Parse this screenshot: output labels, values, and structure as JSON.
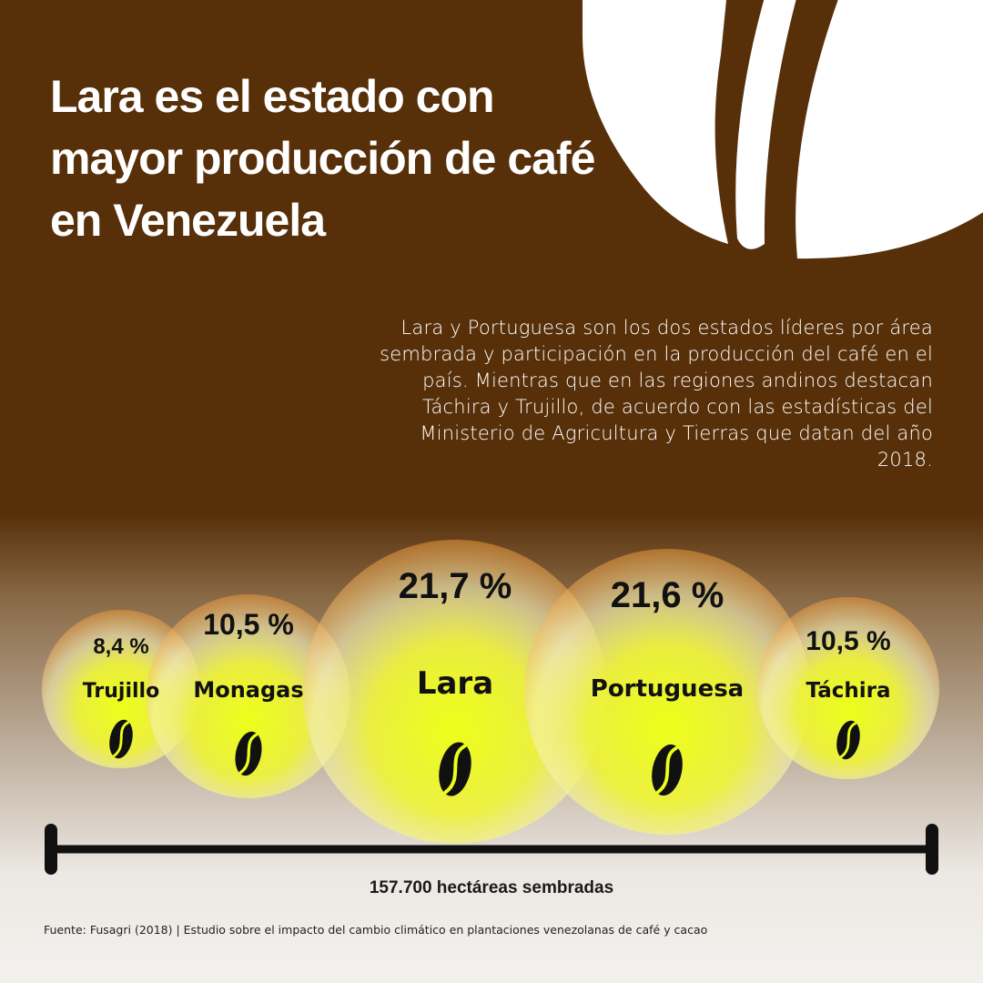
{
  "header": {
    "title": "Lara es el estado con mayor producción de café en Venezuela",
    "intro": "Lara y Portuguesa son los dos estados líderes por área sembrada y participación en la producción del café en el país. Mientras que en las regiones andinos destacan Táchira y Trujillo, de acuerdo con las estadísticas del Ministerio de Agricultura y Tierras que datan del año 2018."
  },
  "chart_data": {
    "type": "bubble",
    "categories": [
      "Trujillo",
      "Monagas",
      "Lara",
      "Portuguesa",
      "Táchira"
    ],
    "values": [
      8.4,
      10.5,
      21.7,
      21.6,
      10.5
    ],
    "value_labels": [
      "8,4 %",
      "10,5 %",
      "21,7 %",
      "21,6 %",
      "10,5 %"
    ],
    "unit": "%",
    "total_label": "157.700 hectáreas sembradas"
  },
  "footer": {
    "source": "Fuente: Fusagri (2018) | Estudio sobre el impacto del cambio climático en plantaciones venezolanas de café y cacao"
  },
  "colors": {
    "background_top": "#57300a",
    "background_bottom": "#f3f1ee",
    "bubble_center": "#e9ff1e",
    "bubble_edge": "#e79a3a",
    "text_dark": "#111111",
    "text_light": "#ffffff"
  },
  "icons": {
    "decoration": "coffee-bean-icon",
    "bubble_icon": "coffee-bean-icon"
  }
}
